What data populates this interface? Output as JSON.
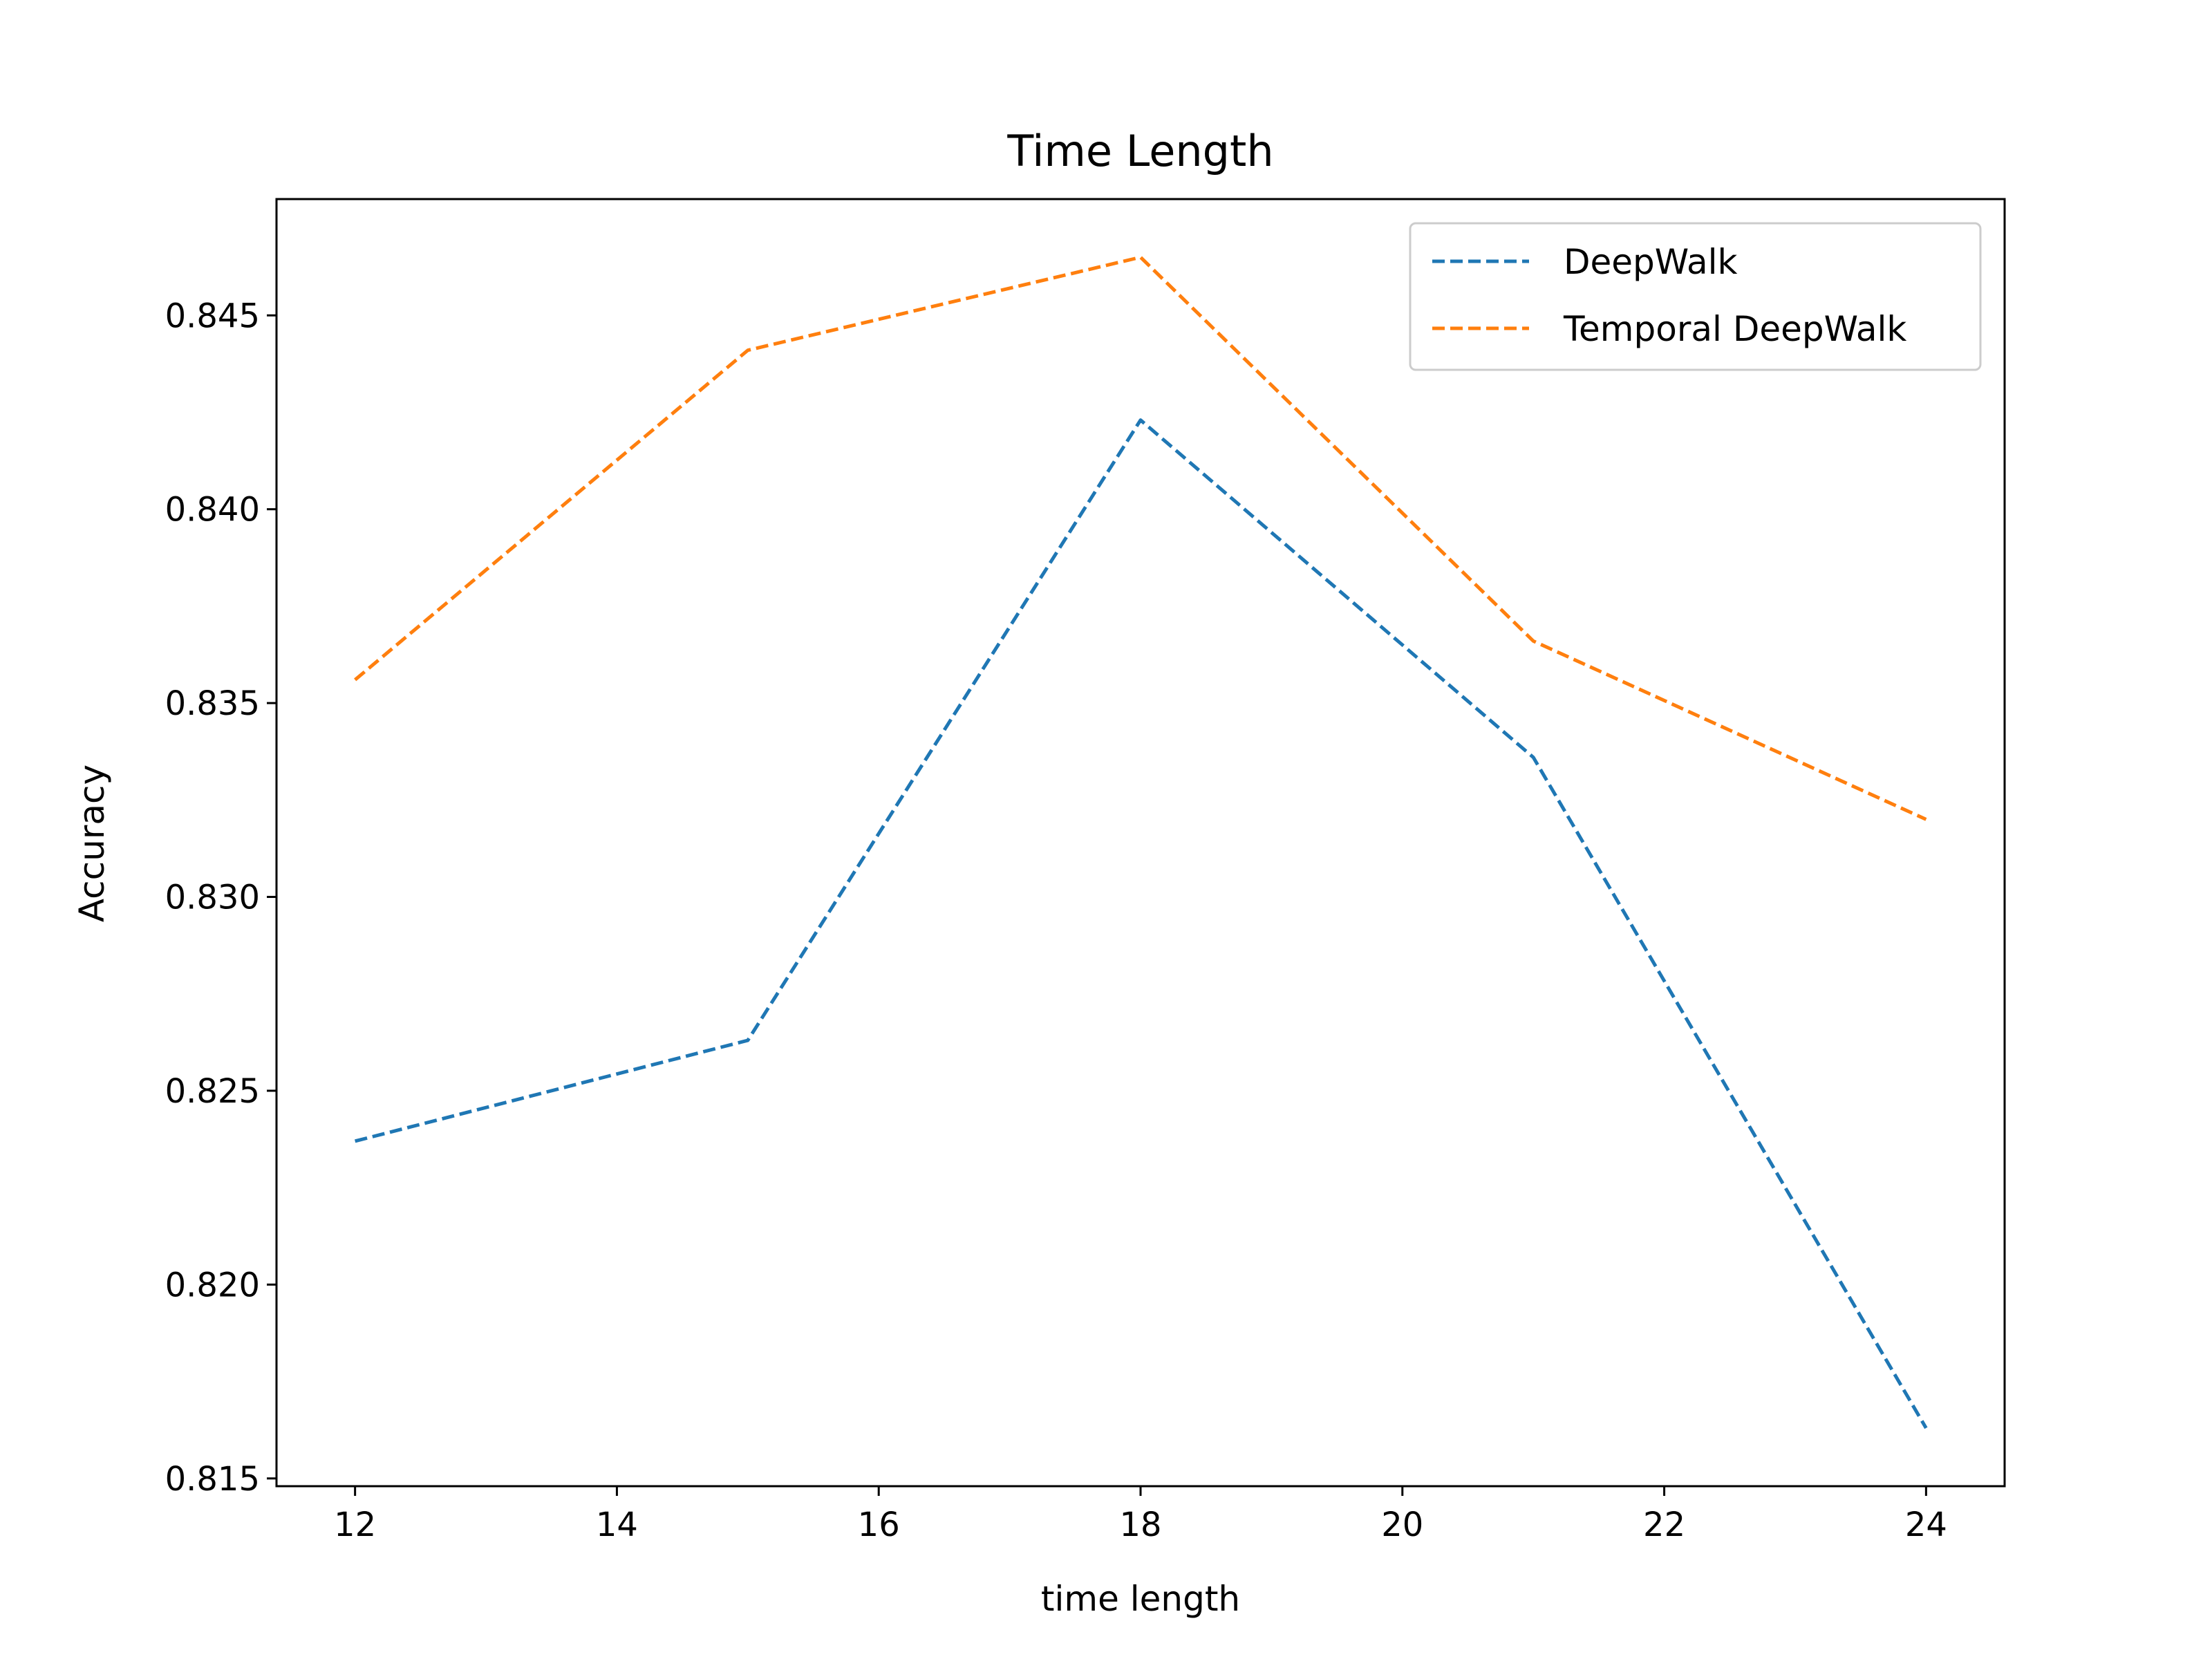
{
  "chart_data": {
    "type": "line",
    "title": "Time Length",
    "xlabel": "time length",
    "ylabel": "Accuracy",
    "xlim": [
      11.4,
      24.6
    ],
    "ylim": [
      0.8148,
      0.848
    ],
    "xticks": [
      12,
      14,
      16,
      18,
      20,
      22,
      24
    ],
    "xtick_labels": [
      "12",
      "14",
      "16",
      "18",
      "20",
      "22",
      "24"
    ],
    "yticks": [
      0.815,
      0.82,
      0.825,
      0.83,
      0.835,
      0.84,
      0.845
    ],
    "ytick_labels": [
      "0.815",
      "0.820",
      "0.825",
      "0.830",
      "0.835",
      "0.840",
      "0.845"
    ],
    "x": [
      12,
      15,
      18,
      21,
      24
    ],
    "series": [
      {
        "name": "DeepWalk",
        "values": [
          0.8237,
          0.8263,
          0.8423,
          0.8336,
          0.8163
        ],
        "color": "#1f77b4",
        "linestyle": "dashed"
      },
      {
        "name": "Temporal DeepWalk",
        "values": [
          0.8356,
          0.8441,
          0.8465,
          0.8366,
          0.832
        ],
        "color": "#ff7f0e",
        "linestyle": "dashed"
      }
    ],
    "grid": false,
    "legend_position": "top-right"
  }
}
